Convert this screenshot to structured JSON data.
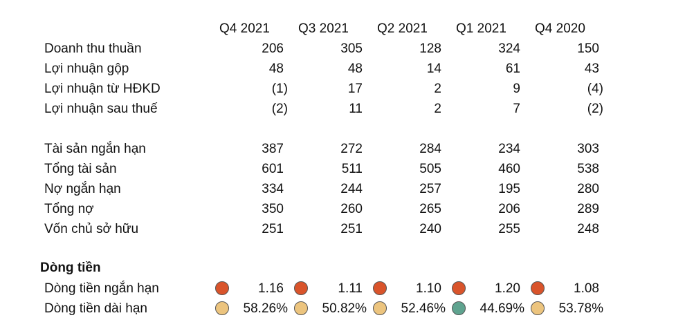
{
  "headers": [
    "Q4 2021",
    "Q3 2021",
    "Q2 2021",
    "Q1 2021",
    "Q4 2020"
  ],
  "income": [
    {
      "label": "Doanh thu thuần",
      "values": [
        "206",
        "305",
        "128",
        "324",
        "150"
      ]
    },
    {
      "label": "Lợi nhuận gộp",
      "values": [
        "48",
        "48",
        "14",
        "61",
        "43"
      ]
    },
    {
      "label": "Lợi nhuận từ HĐKD",
      "values": [
        "(1)",
        "17",
        "2",
        "9",
        "(4)"
      ]
    },
    {
      "label": "Lợi nhuận sau thuế",
      "values": [
        "(2)",
        "11",
        "2",
        "7",
        "(2)"
      ]
    }
  ],
  "balance": [
    {
      "label": "Tài sản ngắn hạn",
      "values": [
        "387",
        "272",
        "284",
        "234",
        "303"
      ]
    },
    {
      "label": "Tổng tài sản",
      "values": [
        "601",
        "511",
        "505",
        "460",
        "538"
      ]
    },
    {
      "label": "Nợ ngắn hạn",
      "values": [
        "334",
        "244",
        "257",
        "195",
        "280"
      ]
    },
    {
      "label": "Tổng nợ",
      "values": [
        "350",
        "260",
        "265",
        "206",
        "289"
      ]
    },
    {
      "label": "Vốn chủ sở hữu",
      "values": [
        "251",
        "251",
        "240",
        "255",
        "248"
      ]
    }
  ],
  "cashflow": {
    "title": "Dòng tiền",
    "rows": [
      {
        "label": "Dòng tiền ngắn hạn",
        "values": [
          "1.16",
          "1.11",
          "1.10",
          "1.20",
          "1.08"
        ],
        "indicator_colors": [
          "#d9542b",
          "#d9542b",
          "#d9542b",
          "#d9542b",
          "#d9542b"
        ]
      },
      {
        "label": "Dòng tiền dài hạn",
        "values": [
          "58.26%",
          "50.82%",
          "52.46%",
          "44.69%",
          "53.78%"
        ],
        "indicator_colors": [
          "#ecc47e",
          "#ecc47e",
          "#ecc47e",
          "#5fa38f",
          "#ecc47e"
        ]
      }
    ]
  }
}
